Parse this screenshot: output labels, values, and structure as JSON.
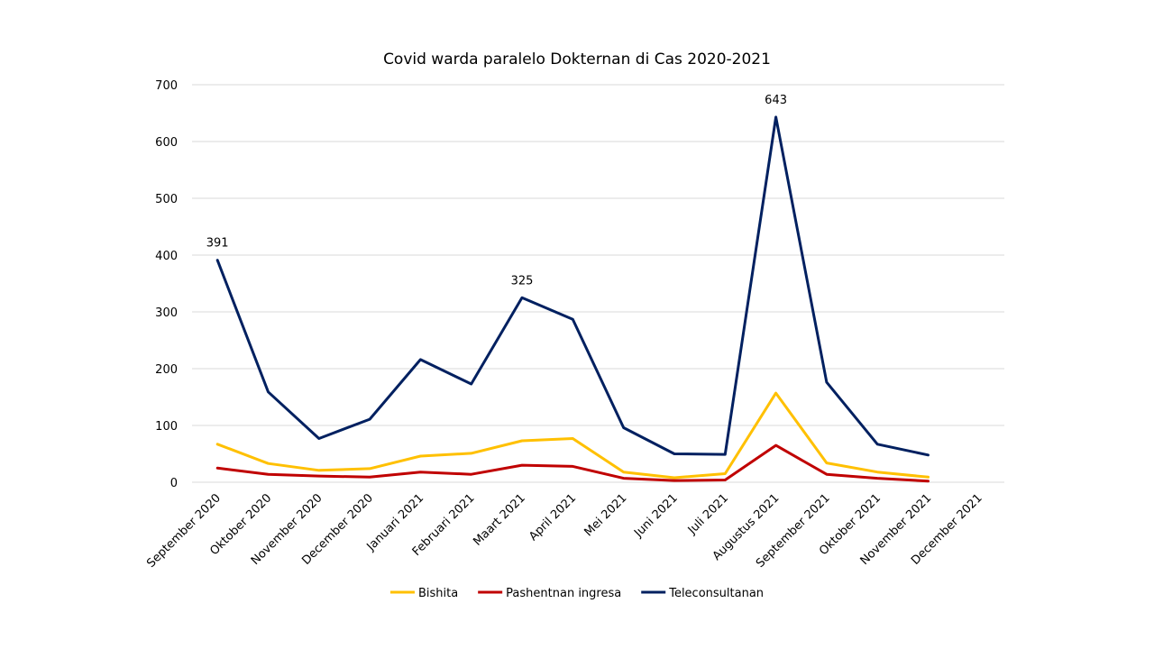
{
  "chart_data": {
    "type": "line",
    "title": "Covid warda paralelo Dokternan di Cas 2020-2021",
    "xlabel": "",
    "ylabel": "",
    "ylim": [
      0,
      700
    ],
    "yticks": [
      0,
      100,
      200,
      300,
      400,
      500,
      600,
      700
    ],
    "categories": [
      "September 2020",
      "Oktober 2020",
      "November 2020",
      "December 2020",
      "Januari 2021",
      "Februari 2021",
      "Maart 2021",
      "April 2021",
      "Mei 2021",
      "Juni 2021",
      "Juli 2021",
      "Augustus 2021",
      "September 2021",
      "Oktober  2021",
      "November 2021",
      "December 2021"
    ],
    "series": [
      {
        "name": "Bishita",
        "color": "#ffc000",
        "values": [
          67,
          33,
          21,
          24,
          46,
          51,
          73,
          77,
          18,
          8,
          15,
          157,
          34,
          18,
          9,
          null
        ]
      },
      {
        "name": "Pashentnan ingresa",
        "color": "#c00000",
        "values": [
          25,
          14,
          11,
          9,
          18,
          14,
          30,
          28,
          7,
          3,
          4,
          65,
          14,
          7,
          2,
          null
        ]
      },
      {
        "name": "Teleconsultanan",
        "color": "#002060",
        "values": [
          391,
          159,
          77,
          111,
          216,
          173,
          325,
          287,
          96,
          50,
          49,
          643,
          176,
          67,
          48,
          null
        ]
      }
    ],
    "data_labels": [
      {
        "series": "Teleconsultanan",
        "index": 0,
        "text": "391"
      },
      {
        "series": "Teleconsultanan",
        "index": 6,
        "text": "325"
      },
      {
        "series": "Teleconsultanan",
        "index": 11,
        "text": "643"
      }
    ],
    "grid": true,
    "legend": "bottom-center"
  }
}
